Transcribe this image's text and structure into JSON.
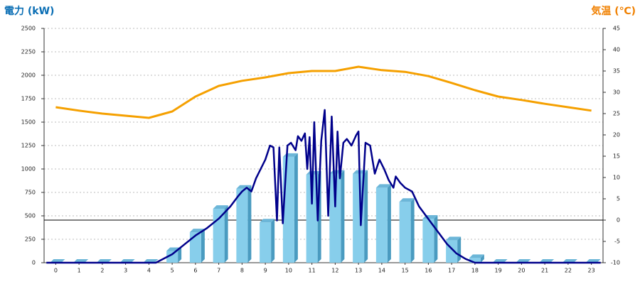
{
  "chart_data": {
    "type": "combo",
    "y_label": "電力 (kW)",
    "y2_label": "気温 (℃)",
    "categories": [
      "0",
      "1",
      "2",
      "3",
      "4",
      "5",
      "6",
      "7",
      "8",
      "9",
      "10",
      "11",
      "12",
      "13",
      "14",
      "15",
      "16",
      "17",
      "18",
      "19",
      "20",
      "21",
      "22",
      "23"
    ],
    "xlim": [
      -0.5,
      23.5
    ],
    "ylim": [
      0,
      2500
    ],
    "yticks": [
      0,
      250,
      500,
      750,
      1000,
      1250,
      1500,
      1750,
      2000,
      2250,
      2500
    ],
    "y2lim": [
      -10,
      45
    ],
    "y2ticks": [
      -10,
      -5,
      0,
      5,
      10,
      15,
      20,
      25,
      30,
      35,
      40,
      45
    ],
    "grid": true,
    "series": [
      {
        "type": "bar",
        "color": "#87ceeb",
        "values": [
          0,
          0,
          0,
          0,
          0,
          125,
          325,
          575,
          790,
          430,
          1130,
          940,
          950,
          950,
          800,
          650,
          470,
          240,
          50,
          0,
          0,
          0,
          0,
          0
        ]
      },
      {
        "type": "line",
        "axis": "y2",
        "color": "#f5a000",
        "values": [
          26.5,
          25.7,
          25,
          24.5,
          24,
          25.5,
          29,
          31.5,
          32.7,
          33.5,
          34.5,
          35,
          35,
          36,
          35.2,
          34.8,
          33.8,
          32.2,
          30.5,
          29,
          28.2,
          27.3,
          26.5,
          25.7
        ]
      },
      {
        "type": "line",
        "color": "#00008b",
        "x": [
          -0.4,
          4.3,
          5,
          5.5,
          6,
          6.5,
          7,
          7.5,
          7.8,
          8,
          8.2,
          8.4,
          8.6,
          8.8,
          9,
          9.2,
          9.35,
          9.5,
          9.6,
          9.75,
          9.95,
          10.1,
          10.3,
          10.4,
          10.55,
          10.7,
          10.8,
          10.9,
          11,
          11.1,
          11.25,
          11.4,
          11.55,
          11.7,
          11.85,
          12,
          12.1,
          12.2,
          12.35,
          12.5,
          12.7,
          12.9,
          13,
          13.1,
          13.3,
          13.5,
          13.7,
          13.9,
          14.1,
          14.3,
          14.5,
          14.6,
          14.8,
          15,
          15.3,
          15.6,
          15.9,
          16.2,
          16.5,
          16.8,
          17.2,
          17.6,
          18,
          23.4
        ],
        "values": [
          0,
          0,
          90,
          190,
          290,
          370,
          470,
          600,
          700,
          760,
          800,
          760,
          900,
          1000,
          1100,
          1250,
          1230,
          450,
          1230,
          420,
          1250,
          1280,
          1200,
          1350,
          1300,
          1380,
          1000,
          1340,
          630,
          1500,
          450,
          1300,
          1630,
          500,
          1560,
          600,
          1400,
          900,
          1280,
          1320,
          1250,
          1360,
          1400,
          400,
          1280,
          1250,
          950,
          1100,
          1000,
          880,
          800,
          920,
          850,
          800,
          760,
          600,
          500,
          400,
          300,
          200,
          100,
          40,
          0,
          0
        ]
      }
    ]
  }
}
